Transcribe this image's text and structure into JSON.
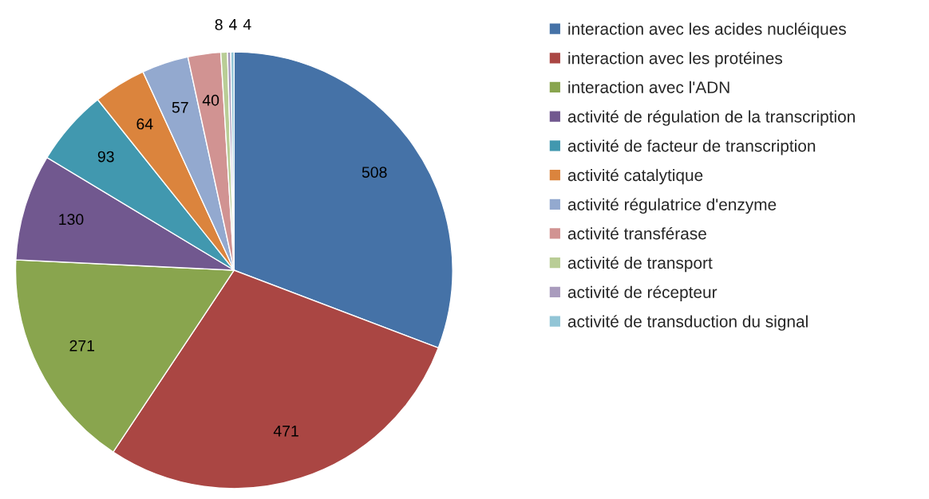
{
  "chart_data": {
    "type": "pie",
    "categories": [
      "interaction avec les acides nucléiques",
      "interaction avec les protéines",
      "interaction avec l'ADN",
      "activité de régulation de la transcription",
      "activité de facteur de transcription",
      "activité catalytique",
      "activité régulatrice d'enzyme",
      "activité transférase",
      "activité de transport",
      "activité de récepteur",
      "activité de transduction du signal"
    ],
    "values": [
      508,
      471,
      271,
      130,
      93,
      64,
      57,
      40,
      8,
      4,
      4
    ],
    "colors": [
      "#4572a7",
      "#aa4643",
      "#89a54e",
      "#71588f",
      "#4198af",
      "#db843d",
      "#93a9cf",
      "#d19392",
      "#b9cd96",
      "#a99bbd",
      "#92c5d6"
    ],
    "data_labels": true,
    "legend": "right"
  }
}
